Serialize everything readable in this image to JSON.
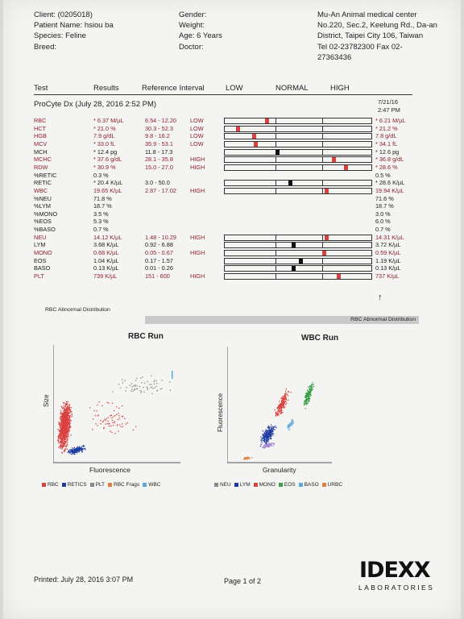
{
  "header": {
    "client": "Client: (0205018)",
    "patient": "Patient Name: hsiou ba",
    "species": "Species: Feline",
    "breed": "Breed:",
    "gender": "Gender:",
    "weight": "Weight:",
    "age": "Age: 6 Years",
    "doctor": "Doctor:",
    "clinic_name": "Mu-An Animal medical center",
    "addr1": "No.220, Sec.2, Keelung Rd., Da-an",
    "addr2": "District, Taipei City 106, Taiwan",
    "phone": "Tel 02-23782300  Fax 02-",
    "fax2": "27363436"
  },
  "columns": {
    "test": "Test",
    "results": "Results",
    "ref": "Reference Interval",
    "low": "LOW",
    "normal": "NORMAL",
    "high": "HIGH"
  },
  "section": {
    "title": "ProCyte Dx (July 28, 2016 2:52 PM)",
    "prev_date": "7/21/16",
    "prev_time": "2:47 PM"
  },
  "rows": [
    {
      "test": "RBC",
      "result": "* 6.37 M/µL",
      "ref": "6.54 - 12.20",
      "flag": "LOW",
      "prev": "* 6.21 M/µL",
      "red": true,
      "bar": true,
      "pos": 0.28
    },
    {
      "test": "HCT",
      "result": "* 21.0 %",
      "ref": "30.3 - 52.3",
      "flag": "LOW",
      "prev": "* 21.2 %",
      "red": true,
      "bar": true,
      "pos": 0.08
    },
    {
      "test": "HGB",
      "result": "7.9 g/dL",
      "ref": "9.8 - 16.2",
      "flag": "LOW",
      "prev": "7.8 g/dL",
      "red": true,
      "bar": true,
      "pos": 0.19
    },
    {
      "test": "MCV",
      "result": "* 33.0 fL",
      "ref": "35.9 - 53.1",
      "flag": "LOW",
      "prev": "* 34.1 fL",
      "red": true,
      "bar": true,
      "pos": 0.2
    },
    {
      "test": "MCH",
      "result": "* 12.4 pg",
      "ref": "11.8 - 17.3",
      "flag": "",
      "prev": "* 12.6 pg",
      "red": false,
      "bar": true,
      "pos": 0.35
    },
    {
      "test": "MCHC",
      "result": "* 37.6 g/dL",
      "ref": "28.1 - 35.8",
      "flag": "HIGH",
      "prev": "* 36.8 g/dL",
      "red": true,
      "bar": true,
      "pos": 0.74
    },
    {
      "test": "RDW",
      "result": "* 30.9 %",
      "ref": "15.0 - 27.0",
      "flag": "HIGH",
      "prev": "* 28.6 %",
      "red": true,
      "bar": true,
      "pos": 0.82
    },
    {
      "test": "%RETIC",
      "result": "0.3 %",
      "ref": "",
      "flag": "",
      "prev": "0.5 %",
      "red": false,
      "bar": false
    },
    {
      "test": "RETIC",
      "result": "* 20.4 K/µL",
      "ref": "3.0 - 50.0",
      "flag": "",
      "prev": "* 28.6 K/µL",
      "red": false,
      "bar": true,
      "pos": 0.44
    },
    {
      "test": "WBC",
      "result": "19.65 K/µL",
      "ref": "2.87 - 17.02",
      "flag": "HIGH",
      "prev": "19.94 K/µL",
      "red": true,
      "bar": true,
      "pos": 0.69
    },
    {
      "test": "%NEU",
      "result": "71.8 %",
      "ref": "",
      "flag": "",
      "prev": "71.6 %",
      "red": false,
      "bar": false
    },
    {
      "test": "%LYM",
      "result": "18.7 %",
      "ref": "",
      "flag": "",
      "prev": "18.7 %",
      "red": false,
      "bar": false
    },
    {
      "test": "%MONO",
      "result": "3.5 %",
      "ref": "",
      "flag": "",
      "prev": "3.0 %",
      "red": false,
      "bar": false
    },
    {
      "test": "%EOS",
      "result": "5.3 %",
      "ref": "",
      "flag": "",
      "prev": "6.0 %",
      "red": false,
      "bar": false
    },
    {
      "test": "%BASO",
      "result": "0.7 %",
      "ref": "",
      "flag": "",
      "prev": "0.7 %",
      "red": false,
      "bar": false
    },
    {
      "test": "NEU",
      "result": "14.12 K/µL",
      "ref": "1.48 - 10.29",
      "flag": "HIGH",
      "prev": "14.31 K/µL",
      "red": true,
      "bar": true,
      "pos": 0.69
    },
    {
      "test": "LYM",
      "result": "3.68 K/µL",
      "ref": "0.92 - 6.88",
      "flag": "",
      "prev": "3.72 K/µL",
      "red": false,
      "bar": true,
      "pos": 0.46
    },
    {
      "test": "MONO",
      "result": "0.68 K/µL",
      "ref": "0.05 - 0.67",
      "flag": "HIGH",
      "prev": "0.59 K/µL",
      "red": true,
      "bar": true,
      "pos": 0.67
    },
    {
      "test": "EOS",
      "result": "1.04 K/µL",
      "ref": "0.17 - 1.57",
      "flag": "",
      "prev": "1.19 K/µL",
      "red": false,
      "bar": true,
      "pos": 0.51
    },
    {
      "test": "BASO",
      "result": "0.13 K/µL",
      "ref": "0.01 - 0.26",
      "flag": "",
      "prev": "0.13 K/µL",
      "red": false,
      "bar": true,
      "pos": 0.46
    },
    {
      "test": "PLT",
      "result": "739 K/µL",
      "ref": "151 - 600",
      "flag": "HIGH",
      "prev": "737 K/µL",
      "red": true,
      "bar": true,
      "pos": 0.77
    }
  ],
  "abnormal_left": "RBC Abnormal Distribution",
  "abnormal_right": "RBC Abnormal Distribution",
  "rbc_run": {
    "title": "RBC Run",
    "ylabel": "Size",
    "xlabel": "Fluorescence",
    "legend": [
      "RBC",
      "RETICS",
      "PLT",
      "RBC Frags",
      "WBC"
    ]
  },
  "wbc_run": {
    "title": "WBC Run",
    "ylabel": "Fluorescence",
    "xlabel": "Granularity",
    "legend": [
      "NEU",
      "LYM",
      "MONO",
      "EOS",
      "BASO",
      "URBC"
    ]
  },
  "colors": {
    "red": "#d94040",
    "darkred": "#8b1f2b",
    "blue": "#1f3aa0",
    "green": "#3aa04a",
    "lightblue": "#5aa8d8",
    "purple": "#a788d8",
    "orange": "#e08040",
    "grey": "#888888"
  },
  "footer": {
    "printed": "Printed: July 28, 2016 3:07 PM",
    "page": "Page 1 of 2",
    "brand": "IDEXX",
    "brand_sub": "LABORATORIES"
  }
}
